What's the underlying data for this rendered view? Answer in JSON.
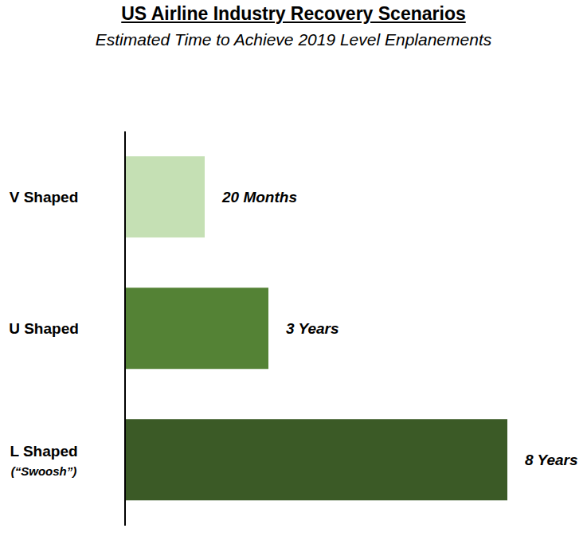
{
  "chart_data": {
    "type": "bar",
    "title": "US Airline Industry Recovery Scenarios",
    "subtitle": "Estimated Time to Achieve 2019 Level Enplanements",
    "orientation": "horizontal",
    "categories": [
      "V Shaped",
      "U Shaped",
      "L Shaped\n(“Swoosh”)"
    ],
    "values": [
      1.667,
      3,
      8
    ],
    "value_labels": [
      "20 Months",
      "3 Years",
      "8 Years"
    ],
    "colors": [
      "#c5e0b4",
      "#548235",
      "#3b5a26"
    ],
    "data_labels": true,
    "tick_labels": "y"
  }
}
